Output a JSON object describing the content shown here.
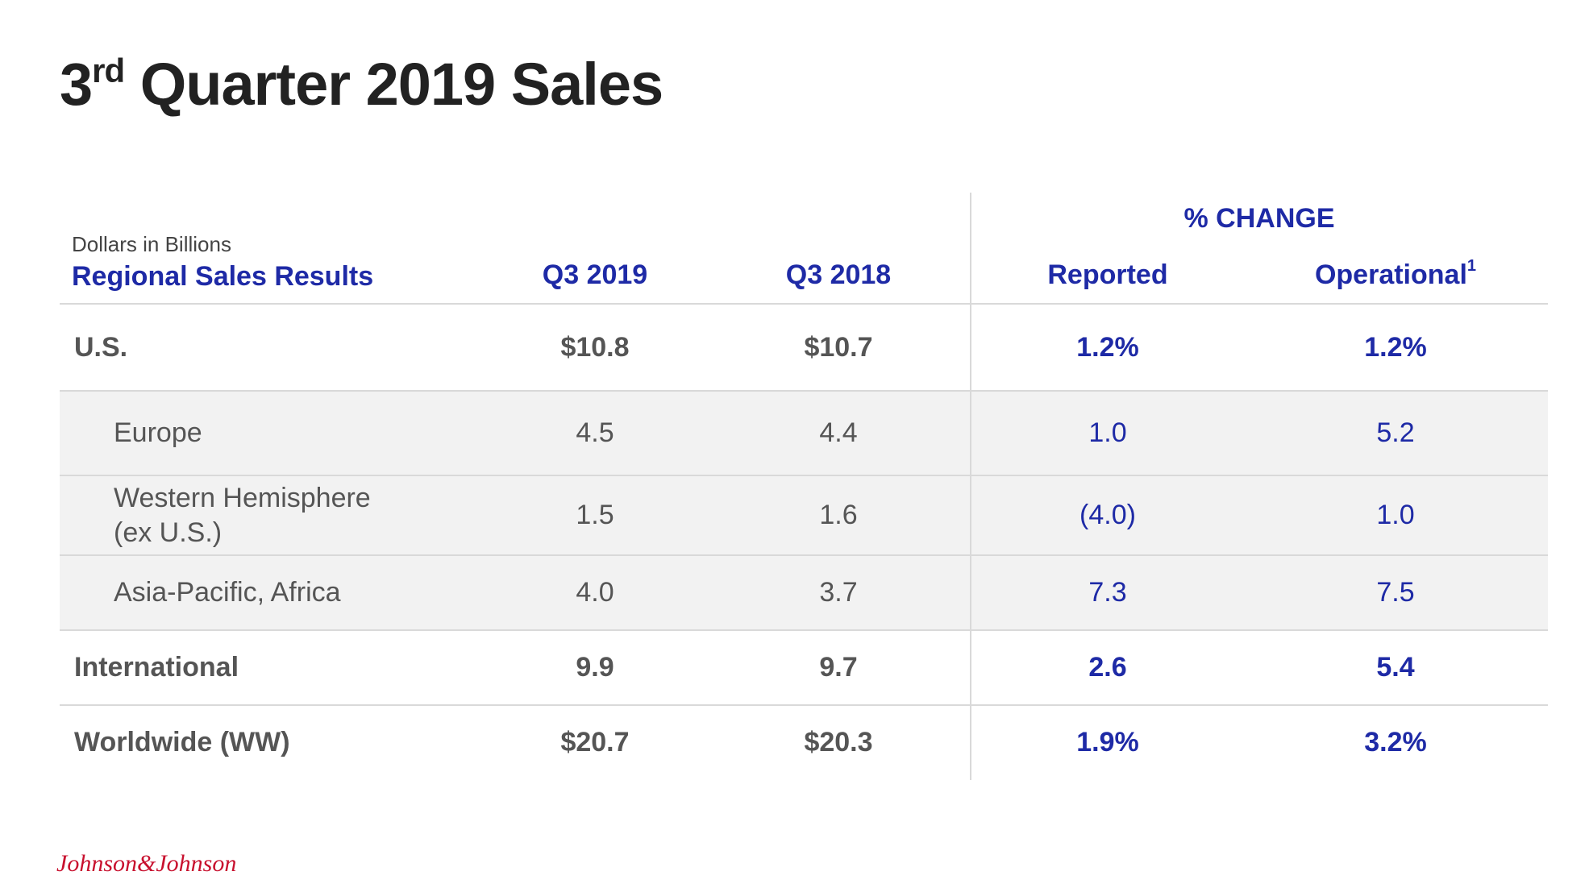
{
  "title": {
    "number": "3",
    "suffix": "rd",
    "text": "Quarter 2019 Sales"
  },
  "table": {
    "note": "Dollars in Billions",
    "group_header": "% CHANGE",
    "columns": [
      "Regional Sales Results",
      "Q3 2019",
      "Q3 2018",
      "Reported",
      "Operational"
    ],
    "column_footnote": "1",
    "rows": [
      [
        "U.S.",
        "$10.8",
        "$10.7",
        "1.2%",
        "1.2%"
      ],
      [
        "Europe",
        "4.5",
        "4.4",
        "1.0",
        "5.2"
      ],
      [
        "Western Hemisphere\n(ex U.S.)",
        "1.5",
        "1.6",
        "(4.0)",
        "1.0"
      ],
      [
        "Asia-Pacific, Africa",
        "4.0",
        "3.7",
        "7.3",
        "7.5"
      ],
      [
        "International",
        "9.9",
        "9.7",
        "2.6",
        "5.4"
      ],
      [
        "Worldwide (WW)",
        "$20.7",
        "$20.3",
        "1.9%",
        "3.2%"
      ]
    ]
  },
  "footer": {
    "logo": "Johnson&Johnson"
  }
}
